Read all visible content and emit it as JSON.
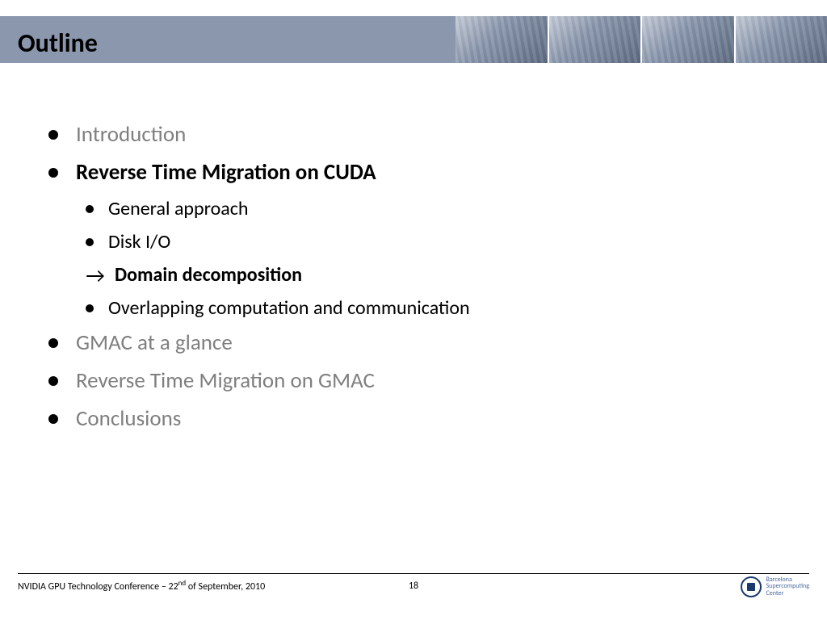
{
  "title": "Outline",
  "items": [
    {
      "level": 1,
      "marker": "bullet",
      "text": "Introduction",
      "dim": true,
      "bold": false
    },
    {
      "level": 1,
      "marker": "bullet",
      "text": "Reverse Time Migration on CUDA",
      "dim": false,
      "bold": true
    },
    {
      "level": 2,
      "marker": "bullet",
      "text": "General approach",
      "dim": false,
      "bold": false
    },
    {
      "level": 2,
      "marker": "bullet",
      "text": "Disk I/O",
      "dim": false,
      "bold": false
    },
    {
      "level": 2,
      "marker": "arrow",
      "text": "Domain decomposition",
      "dim": false,
      "bold": true
    },
    {
      "level": 2,
      "marker": "bullet",
      "text": "Overlapping computation and communication",
      "dim": false,
      "bold": false
    },
    {
      "level": 1,
      "marker": "bullet",
      "text": "GMAC at a glance",
      "dim": true,
      "bold": false
    },
    {
      "level": 1,
      "marker": "bullet",
      "text": "Reverse Time Migration on GMAC",
      "dim": true,
      "bold": false
    },
    {
      "level": 1,
      "marker": "bullet",
      "text": "Conclusions",
      "dim": true,
      "bold": false
    }
  ],
  "footer": {
    "conference_prefix": "NVIDIA GPU Technology Conference – 22",
    "conference_ord": "nd",
    "conference_suffix": " of September, 2010",
    "page": "18",
    "logo_line1": "Barcelona",
    "logo_line2": "Supercomputing",
    "logo_line3": "Center"
  },
  "colors": {
    "band": "#8a97ad",
    "dim_text": "#7f7f7f",
    "logo_blue": "#1a3a6e"
  }
}
